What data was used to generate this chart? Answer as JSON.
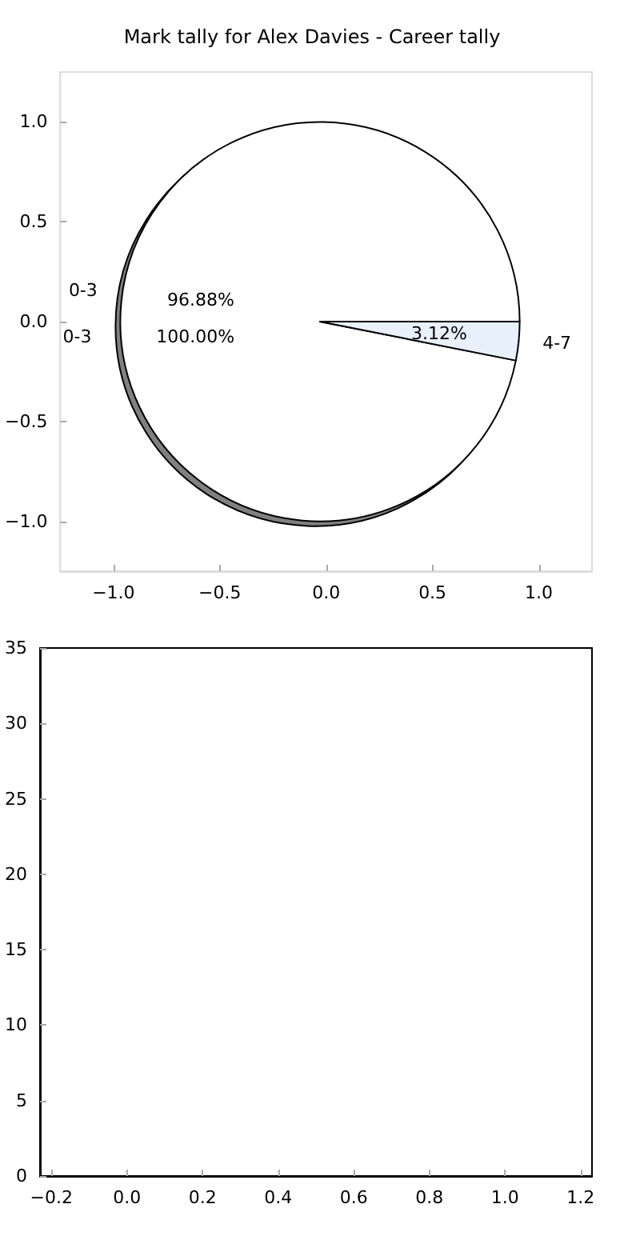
{
  "chart_data": [
    {
      "type": "scatter",
      "xlim": [
        -1.25,
        1.25
      ],
      "ylim": [
        -1.25,
        1.25
      ],
      "xticks": [
        {
          "value": -1,
          "label": "−1.0"
        },
        {
          "value": -0.5,
          "label": "−0.5"
        },
        {
          "value": 0,
          "label": "0.0"
        },
        {
          "value": 0.5,
          "label": "0.5"
        },
        {
          "value": 1,
          "label": "1.0"
        }
      ],
      "yticks": [
        {
          "value": -1,
          "label": "−1.0"
        },
        {
          "value": -0.5,
          "label": "−0.5"
        },
        {
          "value": 0,
          "label": "0.0"
        },
        {
          "value": 0.5,
          "label": "0.5"
        },
        {
          "value": 1,
          "label": "1.0"
        }
      ],
      "grid": false,
      "legend": false
    },
    {
      "type": "pie",
      "categories": [
        "0-3"
      ],
      "values": [
        100
      ],
      "colors": [
        "#808080"
      ],
      "value_labels": [
        "100.00%"
      ],
      "legend": false
    },
    {
      "type": "pie",
      "title": "Mark tally for Alex Davies - Career tally",
      "categories": [
        "0-3",
        "4-7"
      ],
      "values": [
        96.88,
        3.12
      ],
      "colors": [
        "#ffffff",
        "#e8f0fc"
      ],
      "value_labels": [
        "96.88%",
        "3.12%"
      ],
      "legend": false
    },
    {
      "type": "scatter",
      "xlim": [
        -0.23,
        1.23
      ],
      "ylim": [
        0,
        35
      ],
      "xticks": [
        {
          "value": -0.2,
          "label": "−0.2"
        },
        {
          "value": 0,
          "label": "0.0"
        },
        {
          "value": 0.2,
          "label": "0.2"
        },
        {
          "value": 0.4,
          "label": "0.4"
        },
        {
          "value": 0.6,
          "label": "0.6"
        },
        {
          "value": 0.8,
          "label": "0.8"
        },
        {
          "value": 1,
          "label": "1.0"
        },
        {
          "value": 1.2,
          "label": "1.2"
        }
      ],
      "yticks": [
        0,
        5,
        10,
        15,
        20,
        25,
        30,
        35
      ],
      "grid": false,
      "legend": false
    }
  ]
}
